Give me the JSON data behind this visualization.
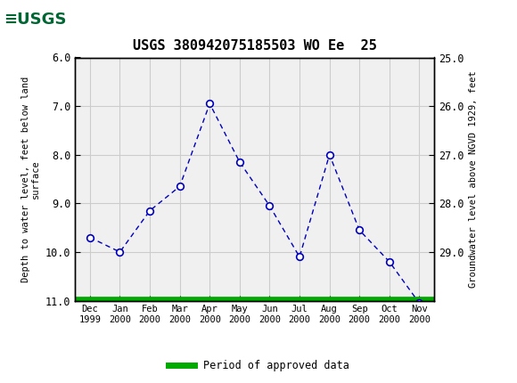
{
  "title": "USGS 380942075185503 WO Ee  25",
  "x_labels": [
    "Dec\n1999",
    "Jan\n2000",
    "Feb\n2000",
    "Mar\n2000",
    "Apr\n2000",
    "May\n2000",
    "Jun\n2000",
    "Jul\n2000",
    "Aug\n2000",
    "Sep\n2000",
    "Oct\n2000",
    "Nov\n2000"
  ],
  "x_positions": [
    0,
    1,
    2,
    3,
    4,
    5,
    6,
    7,
    8,
    9,
    10,
    11
  ],
  "y_depth": [
    9.7,
    10.0,
    9.15,
    8.65,
    6.95,
    8.15,
    9.05,
    10.1,
    8.0,
    9.55,
    10.2,
    11.05
  ],
  "ylim_left": [
    6.0,
    11.0
  ],
  "ylim_right": [
    25.0,
    30.0
  ],
  "ylabel_left": "Depth to water level, feet below land\nsurface",
  "ylabel_right": "Groundwater level above NGVD 1929, feet",
  "yticks_left": [
    6.0,
    7.0,
    8.0,
    9.0,
    10.0,
    11.0
  ],
  "yticks_right": [
    25.0,
    26.0,
    27.0,
    28.0,
    29.0
  ],
  "line_color": "#0000bb",
  "marker_color": "#0000bb",
  "approved_color": "#00aa00",
  "header_color": "#006633",
  "bg_color": "#ffffff",
  "plot_bg_color": "#f0f0f0",
  "grid_color": "#cccccc",
  "legend_label": "Period of approved data",
  "figsize": [
    5.8,
    4.3
  ],
  "dpi": 100
}
